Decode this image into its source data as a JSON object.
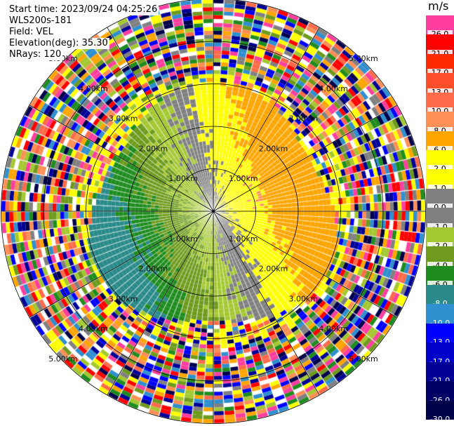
{
  "header": {
    "start_time": "Start time: 2023/09/24 04:25:26",
    "instrument": "WLS200s-181",
    "field": "Field: VEL",
    "elevation": "Elevation(deg): 35.30",
    "nrays": "NRays: 120"
  },
  "range_labels": [
    "1.00km",
    "2.00km",
    "3.00km",
    "4.00km",
    "5.00km"
  ],
  "colorbar": {
    "unit": "m/s",
    "levels": [
      {
        "label": "26.0",
        "color": "#ff3e9f"
      },
      {
        "label": "21.0",
        "color": "#ff0000"
      },
      {
        "label": "17.0",
        "color": "#ff2a00"
      },
      {
        "label": "13.0",
        "color": "#ff4e2a"
      },
      {
        "label": "10.0",
        "color": "#ff6a4a"
      },
      {
        "label": "8.0",
        "color": "#ff8f55"
      },
      {
        "label": "6.0",
        "color": "#ffa500"
      },
      {
        "label": "2.0",
        "color": "#ffff00"
      },
      {
        "label": "1.0",
        "color": "#ffff00"
      },
      {
        "label": "0.0",
        "color": "#808080"
      },
      {
        "label": "-1.0",
        "color": "#808080"
      },
      {
        "label": "-2.0",
        "color": "#a4c832"
      },
      {
        "label": "-4.0",
        "color": "#6e9b1e"
      },
      {
        "label": "-6.0",
        "color": "#1e8c1e"
      },
      {
        "label": "-8.0",
        "color": "#2a8a8a"
      },
      {
        "label": "-10.0",
        "color": "#2f8fcf"
      },
      {
        "label": "-13.0",
        "color": "#0000ff"
      },
      {
        "label": "-17.0",
        "color": "#0000c8"
      },
      {
        "label": "-21.0",
        "color": "#000096"
      },
      {
        "label": "-26.0",
        "color": "#000064"
      },
      {
        "label": "-30.0",
        "color": "#00004b"
      }
    ]
  }
}
